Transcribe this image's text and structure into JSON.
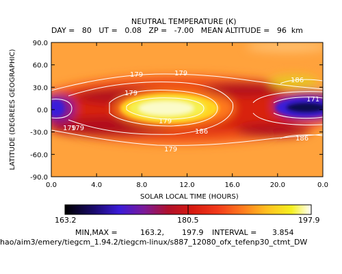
{
  "chart_data": {
    "type": "heatmap",
    "title": "NEUTRAL TEMPERATURE (K)",
    "subtitle": "DAY =   80   UT =   0.08   ZP =   -7.00   MEAN ALTITUDE =   96  km",
    "xlabel": "SOLAR LOCAL TIME (HOURS)",
    "ylabel": "LATITUDE (DEGREES GEOGRAPHIC)",
    "xlim": [
      0.0,
      24.0
    ],
    "ylim": [
      -90.0,
      90.0
    ],
    "x_ticks": [
      "0.0",
      "4.0",
      "8.0",
      "12.0",
      "16.0",
      "20.0",
      "0.0"
    ],
    "y_ticks": [
      "90.0",
      "60.0",
      "30.0",
      "0.0",
      "-30.0",
      "-60.0",
      "-90.0"
    ],
    "contour_labels": [
      "179",
      "179",
      "179",
      "186",
      "171",
      "179",
      "186",
      "179",
      "179",
      "186",
      "179"
    ],
    "colorbar": {
      "min_label": "163.2",
      "mid_label": "180.5",
      "max_label": "197.9",
      "min": 163.2,
      "max": 197.9
    },
    "stats": {
      "minmax_label": "MIN,MAX =",
      "min": "163.2,",
      "max": "197.9",
      "interval_label": "INTERVAL =",
      "interval": "3.854"
    },
    "features": [
      {
        "kind": "max",
        "x": 10.5,
        "y": 0,
        "value": 197.9
      },
      {
        "kind": "min",
        "x": 22.0,
        "y": 0,
        "value": 163.2
      },
      {
        "kind": "min",
        "x": 0.5,
        "y": 0,
        "value": 165.0
      }
    ]
  },
  "footer_path": "hao/aim3/emery/tiegcm_1.94.2/tiegcm-linux/s887_12080_ofx_tefenp30_ctmt_DW"
}
